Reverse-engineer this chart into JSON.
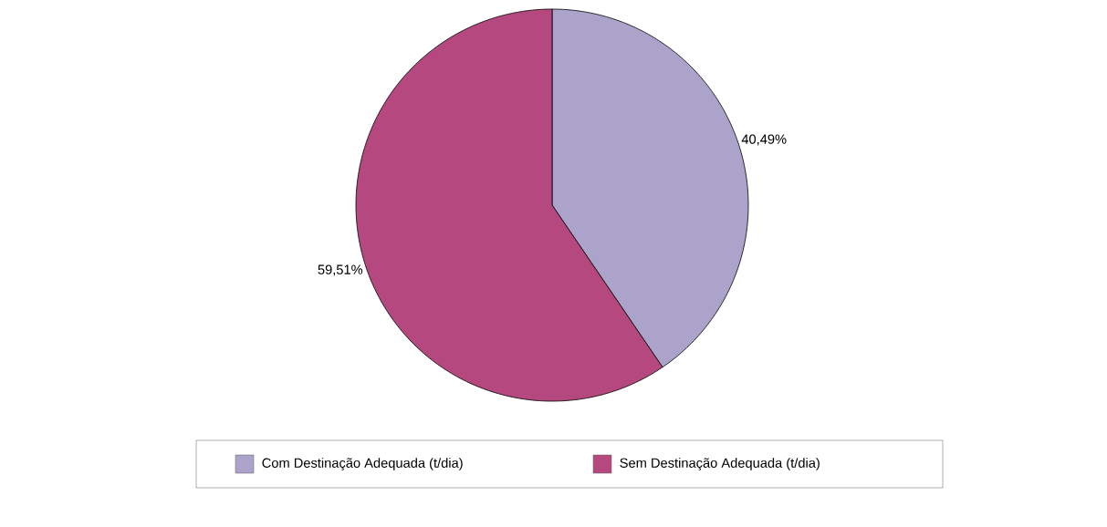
{
  "chart_data": {
    "type": "pie",
    "categories": [
      "Com Destinação Adequada (t/dia)",
      "Sem Destinação Adequada (t/dia)"
    ],
    "values": [
      40.49,
      59.51
    ],
    "colors": [
      "#aca3cb",
      "#b5487f"
    ],
    "value_labels": [
      "40,49%",
      "59,51%"
    ],
    "legend": "bottom"
  }
}
